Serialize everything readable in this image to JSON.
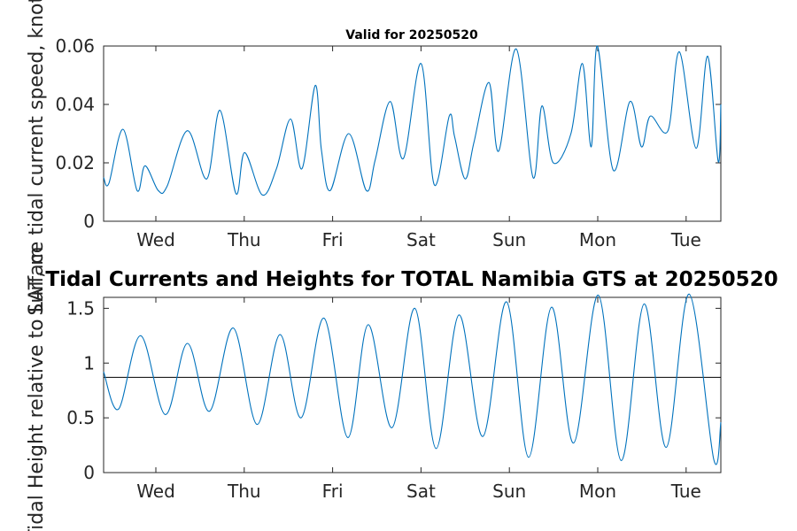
{
  "chart_data": [
    {
      "type": "line",
      "title": "Valid for 20250520",
      "ylabel": "Surface tidal current speed, knots",
      "xlabel": "",
      "x_tick_labels": [
        "Wed",
        "Thu",
        "Fri",
        "Sat",
        "Sun",
        "Mon",
        "Tue"
      ],
      "y_ticks": [
        0,
        0.02,
        0.04,
        0.06
      ],
      "ylim": [
        0,
        0.06
      ],
      "xlim_days": [
        0,
        7
      ],
      "grid": false,
      "series": [
        {
          "color": "#0072BD",
          "x_day": [
            0,
            0.06,
            0.22,
            0.38,
            0.47,
            0.62,
            0.72,
            0.95,
            1.17,
            1.32,
            1.5,
            1.6,
            1.8,
            1.96,
            2.12,
            2.25,
            2.4,
            2.47,
            2.57,
            2.78,
            2.98,
            3.08,
            3.25,
            3.4,
            3.6,
            3.75,
            3.92,
            3.98,
            4.1,
            4.2,
            4.37,
            4.48,
            4.68,
            4.87,
            4.97,
            5.1,
            5.3,
            5.43,
            5.53,
            5.6,
            5.78,
            5.97,
            6.1,
            6.2,
            6.4,
            6.53,
            6.72,
            6.85,
            6.97,
            7.0
          ],
          "y": [
            0.015,
            0.013,
            0.0315,
            0.0105,
            0.019,
            0.0105,
            0.012,
            0.031,
            0.0145,
            0.038,
            0.0095,
            0.0235,
            0.009,
            0.018,
            0.035,
            0.018,
            0.0465,
            0.0245,
            0.0105,
            0.03,
            0.0105,
            0.021,
            0.041,
            0.0215,
            0.054,
            0.0125,
            0.036,
            0.029,
            0.0145,
            0.027,
            0.0475,
            0.024,
            0.059,
            0.015,
            0.0395,
            0.02,
            0.03,
            0.054,
            0.0255,
            0.06,
            0.0175,
            0.041,
            0.0255,
            0.036,
            0.031,
            0.058,
            0.025,
            0.0565,
            0.0205,
            0.04
          ]
        }
      ]
    },
    {
      "type": "line",
      "title": "Tidal Currents and Heights for TOTAL Namibia GTS at 20250520",
      "ylabel": "Tidal Height relative to LAT, m",
      "xlabel": "",
      "x_tick_labels": [
        "Wed",
        "Thu",
        "Fri",
        "Sat",
        "Sun",
        "Mon",
        "Tue"
      ],
      "y_ticks": [
        0,
        0.5,
        1,
        1.5
      ],
      "ylim": [
        0,
        1.6
      ],
      "xlim_days": [
        0,
        7
      ],
      "grid": false,
      "reference_line": 0.87,
      "series": [
        {
          "color": "#0072BD",
          "x_day": [
            0,
            0.17,
            0.42,
            0.7,
            0.95,
            1.2,
            1.47,
            1.74,
            2.0,
            2.24,
            2.5,
            2.77,
            3.0,
            3.27,
            3.53,
            3.77,
            4.03,
            4.3,
            4.57,
            4.82,
            5.08,
            5.33,
            5.61,
            5.87,
            6.13,
            6.38,
            6.64,
            6.92,
            7.0
          ],
          "y": [
            0.92,
            0.58,
            1.25,
            0.53,
            1.18,
            0.56,
            1.32,
            0.44,
            1.26,
            0.5,
            1.41,
            0.32,
            1.35,
            0.41,
            1.5,
            0.22,
            1.44,
            0.33,
            1.56,
            0.14,
            1.51,
            0.27,
            1.62,
            0.11,
            1.54,
            0.23,
            1.63,
            0.12,
            0.46
          ]
        }
      ]
    }
  ]
}
